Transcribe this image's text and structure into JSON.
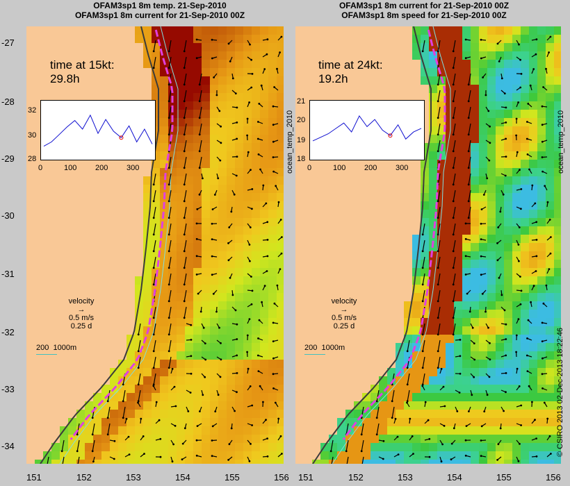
{
  "left_title": [
    "OFAM3sp1 8m temp. 21-Sep-2010",
    "OFAM3sp1 8m current for 21-Sep-2010 00Z"
  ],
  "right_title": [
    "OFAM3sp1 8m current for 21-Sep-2010 00Z",
    "OFAM3sp1 8m speed for 21-Sep-2010 00Z"
  ],
  "y_ticks": [
    "-27",
    "-28",
    "-29",
    "-30",
    "-31",
    "-32",
    "-33",
    "-34"
  ],
  "x_ticks": [
    "151",
    "152",
    "153",
    "154",
    "155",
    "156"
  ],
  "left": {
    "time_label": "time at 15kt:",
    "time_value": "29.8h",
    "inset_y": [
      "32",
      "30",
      "28"
    ],
    "inset_x": [
      "0",
      "100",
      "200",
      "300"
    ]
  },
  "right": {
    "time_label": "time at 24kt:",
    "time_value": "19.2h",
    "inset_y": [
      "21",
      "20",
      "19",
      "18"
    ],
    "inset_x": [
      "0",
      "100",
      "200",
      "300"
    ]
  },
  "legend": {
    "title": "velocity",
    "speed": "0.5 m/s",
    "duration": "0.25 d"
  },
  "scale": {
    "a": "200",
    "b": "1000m"
  },
  "side_label": "ocean_temp_2010",
  "credit": "© CSIRO 2013   02-Dec-2013 18:22:46",
  "colors": {
    "land": "#f9c896",
    "coast": "#3b3b3b",
    "track": "#e040e0",
    "contour": "#80e0e0"
  },
  "chart_data": [
    {
      "type": "line",
      "series": [
        {
          "values": [
            29.0,
            29.4,
            30.1,
            30.8,
            31.4,
            30.6,
            31.9,
            30.2,
            31.5,
            30.4,
            29.8,
            30.9,
            29.4,
            30.6,
            29.2
          ]
        }
      ],
      "ylim": [
        28,
        33
      ],
      "xlim": [
        0,
        365
      ]
    },
    {
      "type": "line",
      "series": [
        {
          "values": [
            18.9,
            19.1,
            19.3,
            19.6,
            19.9,
            19.4,
            20.3,
            19.7,
            20.1,
            19.5,
            19.2,
            19.8,
            19.0,
            19.4,
            19.6
          ]
        }
      ],
      "ylim": [
        18,
        21
      ],
      "xlim": [
        0,
        365
      ]
    }
  ]
}
